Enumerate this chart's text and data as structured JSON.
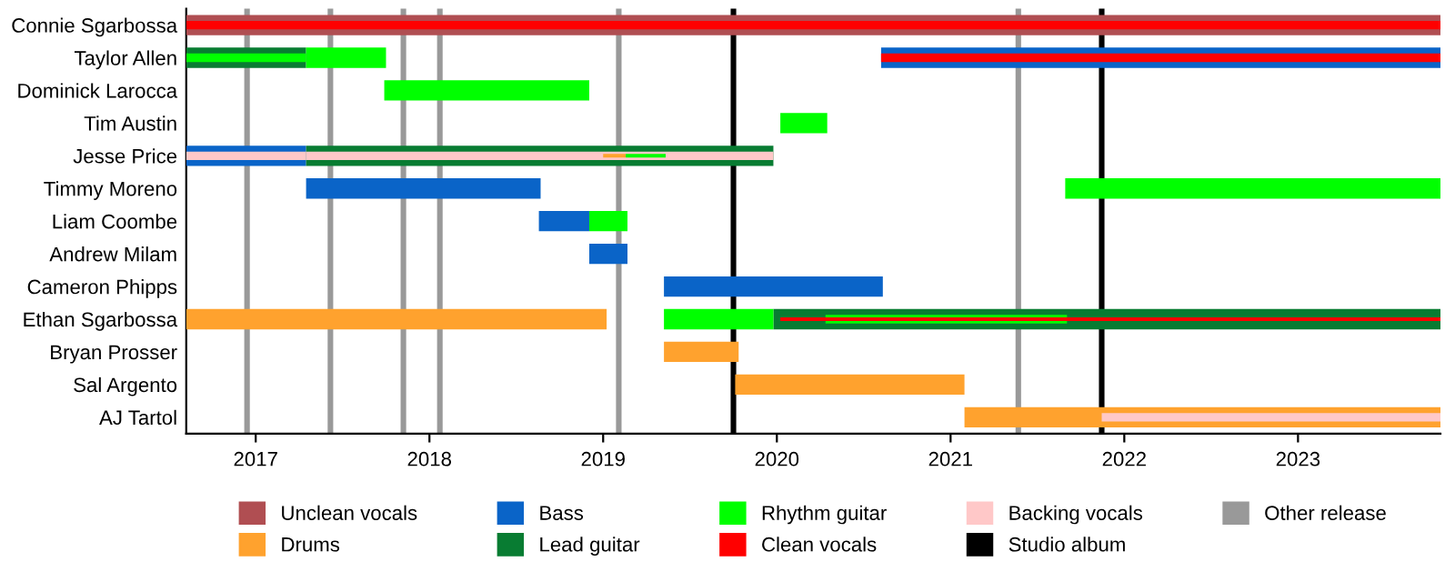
{
  "chart_data": {
    "type": "bar",
    "orientation": "horizontal",
    "categories": [
      "Connie Sgarbossa",
      "Taylor Allen",
      "Dominick Larocca",
      "Tim Austin",
      "Jesse Price",
      "Timmy Moreno",
      "Liam Coombe",
      "Andrew Milam",
      "Cameron Phipps",
      "Ethan Sgarbossa",
      "Bryan Prosser",
      "Sal Argento",
      "AJ Tartol"
    ],
    "series": [
      {
        "name": "Unclean vocals",
        "color": "#b04e52",
        "base": [
          2016.6,
          null,
          null,
          null,
          null,
          null,
          null,
          null,
          null,
          null,
          null,
          null,
          null
        ],
        "values": [
          7.22,
          null,
          null,
          null,
          null,
          null,
          null,
          null,
          null,
          null,
          null,
          null,
          null
        ]
      },
      {
        "name": "Drums",
        "color": "#ffa22e",
        "base": [
          null,
          null,
          null,
          null,
          null,
          null,
          null,
          null,
          null,
          2016.6,
          2019.35,
          2019.76,
          2021.08
        ],
        "values": [
          null,
          null,
          null,
          null,
          null,
          null,
          null,
          null,
          null,
          2.42,
          0.43,
          1.32,
          2.74
        ]
      },
      {
        "name": "Bass",
        "color": "#0a64c8",
        "base": [
          null,
          2020.6,
          null,
          null,
          2016.6,
          2017.29,
          2018.63,
          2018.92,
          2019.35,
          null,
          null,
          null,
          null
        ],
        "values": [
          null,
          3.22,
          null,
          null,
          0.69,
          1.35,
          0.29,
          0.22,
          1.26,
          null,
          null,
          null,
          null
        ]
      },
      {
        "name": "Lead guitar",
        "color": "#087c32",
        "base": [
          null,
          2016.6,
          null,
          null,
          2017.29,
          null,
          null,
          null,
          null,
          2019.98,
          null,
          null,
          null
        ],
        "values": [
          null,
          0.69,
          null,
          null,
          2.69,
          null,
          null,
          null,
          null,
          3.84,
          null,
          null,
          null
        ]
      },
      {
        "name": "Rhythm guitar",
        "color": "#00ff00",
        "base": [
          null,
          2017.29,
          2017.74,
          2020.02,
          null,
          2021.66,
          2018.92,
          null,
          null,
          2019.35,
          null,
          null,
          null
        ],
        "values": [
          null,
          0.46,
          1.18,
          0.27,
          null,
          2.16,
          0.22,
          null,
          null,
          0.63,
          null,
          null,
          null
        ]
      },
      {
        "color": "#00ff00",
        "base": [
          null,
          2016.6,
          null,
          null,
          null,
          null,
          null,
          null,
          null,
          2020.28,
          null,
          null,
          null
        ],
        "values": [
          null,
          0.69,
          null,
          null,
          null,
          null,
          null,
          null,
          null,
          1.39,
          null,
          null,
          null
        ]
      },
      {
        "name": "Clean vocals",
        "color": "#ff0000",
        "base": [
          2016.6,
          2020.6,
          null,
          null,
          null,
          null,
          null,
          null,
          null,
          2020.02,
          null,
          null,
          null
        ],
        "values": [
          7.22,
          3.22,
          null,
          null,
          null,
          null,
          null,
          null,
          null,
          3.8,
          null,
          null,
          null
        ]
      },
      {
        "name": "Backing vocals",
        "color": "#ffc8c8",
        "base": [
          null,
          null,
          null,
          null,
          2016.6,
          null,
          null,
          null,
          null,
          null,
          null,
          null,
          2021.87
        ],
        "values": [
          null,
          null,
          null,
          null,
          0.69,
          null,
          null,
          null,
          null,
          null,
          null,
          null,
          1.95
        ]
      },
      {
        "color": "#ffc8c8",
        "base": [
          null,
          null,
          null,
          null,
          2017.29,
          null,
          null,
          null,
          null,
          null,
          null,
          null,
          null
        ],
        "values": [
          null,
          null,
          null,
          null,
          2.69,
          null,
          null,
          null,
          null,
          null,
          null,
          null,
          null
        ]
      },
      {
        "color": "#ffa22e",
        "base": [
          null,
          null,
          null,
          null,
          2019.0,
          null,
          null,
          null,
          null,
          null,
          null,
          null,
          null
        ],
        "values": [
          null,
          null,
          null,
          null,
          0.13,
          null,
          null,
          null,
          null,
          null,
          null,
          null,
          null
        ]
      },
      {
        "color": "#00ff00",
        "base": [
          null,
          null,
          null,
          null,
          2019.13,
          null,
          null,
          null,
          null,
          null,
          null,
          null,
          null
        ],
        "values": [
          null,
          null,
          null,
          null,
          0.23,
          null,
          null,
          null,
          null,
          null,
          null,
          null,
          null
        ]
      }
    ],
    "ref_lines": [
      {
        "axis": "x",
        "value": 2019.75,
        "label": "Studio album",
        "color": "#000000"
      },
      {
        "axis": "x",
        "value": 2021.87,
        "color": "#000000"
      },
      {
        "axis": "x",
        "value": 2016.95,
        "label": "Other release",
        "color": "#999999"
      },
      {
        "axis": "x",
        "value": 2017.43,
        "color": "#999999"
      },
      {
        "axis": "x",
        "value": 2017.85,
        "color": "#999999"
      },
      {
        "axis": "x",
        "value": 2018.06,
        "color": "#999999"
      },
      {
        "axis": "x",
        "value": 2019.09,
        "color": "#999999"
      },
      {
        "axis": "x",
        "value": 2021.39,
        "color": "#999999"
      }
    ],
    "xlim": [
      2016.6,
      2023.82
    ],
    "xticks": [
      2017,
      2018,
      2019,
      2020,
      2021,
      2022,
      2023
    ],
    "grid": false,
    "legend": "bottom"
  }
}
